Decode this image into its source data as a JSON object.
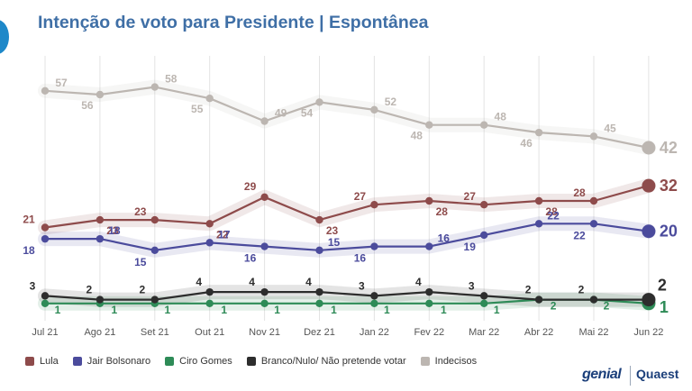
{
  "title": "Intenção de voto para Presidente | Espontânea",
  "brands": {
    "left": "genial",
    "right": "Quaest"
  },
  "chart_data": {
    "type": "line",
    "categories": [
      "Jul 21",
      "Ago 21",
      "Set 21",
      "Out 21",
      "Nov 21",
      "Dez 21",
      "Jan 22",
      "Fev 22",
      "Mar 22",
      "Abr 22",
      "Mai 22",
      "Jun 22"
    ],
    "ylim": [
      0,
      60
    ],
    "grid": "vertical",
    "legend": "bottom",
    "series": [
      {
        "name": "Lula",
        "color": "#8e4b4b",
        "values": [
          21,
          23,
          23,
          22,
          29,
          23,
          27,
          28,
          27,
          28,
          28,
          32
        ]
      },
      {
        "name": "Jair Bolsonaro",
        "color": "#4b4b9c",
        "values": [
          18,
          18,
          15,
          17,
          16,
          15,
          16,
          16,
          19,
          22,
          22,
          20
        ]
      },
      {
        "name": "Ciro Gomes",
        "color": "#2e8b57",
        "values": [
          1,
          1,
          1,
          1,
          1,
          1,
          1,
          1,
          1,
          2,
          2,
          1
        ]
      },
      {
        "name": "Branco/Nulo/ Não pretende votar",
        "color": "#2d2d2d",
        "values": [
          3,
          2,
          2,
          4,
          4,
          4,
          3,
          4,
          3,
          2,
          2,
          2
        ]
      },
      {
        "name": "Indecisos",
        "color": "#bcb6b1",
        "values": [
          57,
          56,
          58,
          55,
          49,
          54,
          52,
          48,
          48,
          46,
          45,
          42
        ]
      }
    ]
  }
}
